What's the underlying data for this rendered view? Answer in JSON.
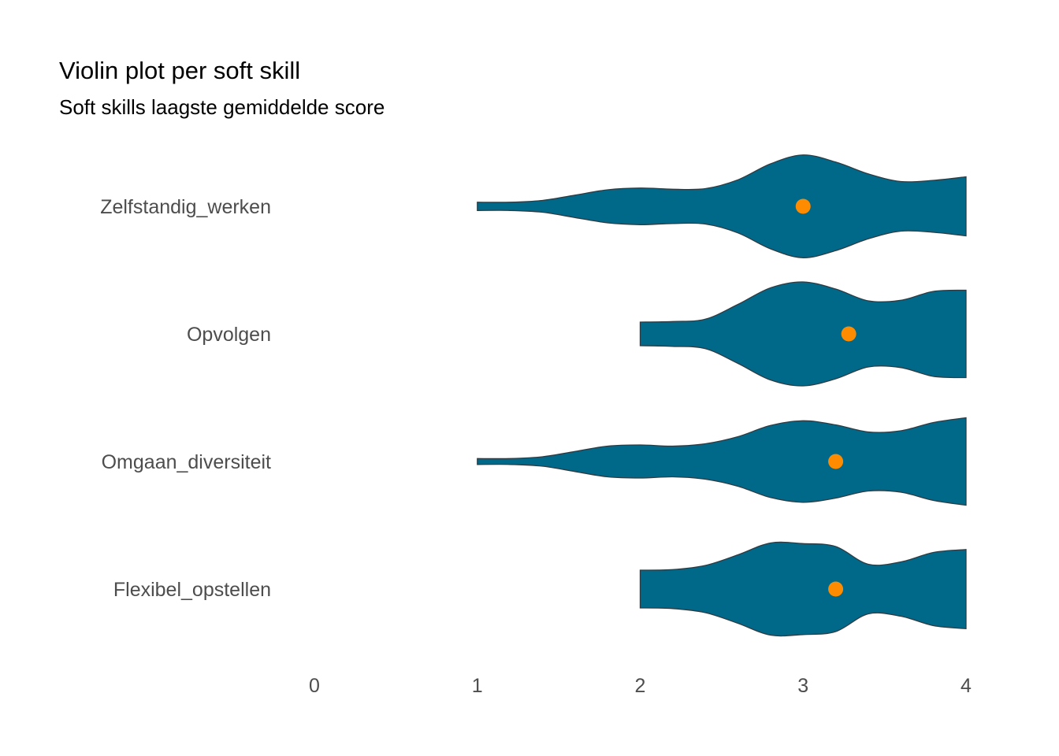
{
  "chart_data": {
    "type": "violin",
    "title": "Violin plot per soft skill",
    "subtitle": "Soft skills laagste gemiddelde score",
    "xlabel": "",
    "ylabel": "",
    "xlim": [
      0,
      4
    ],
    "xticks": [
      "0",
      "1",
      "2",
      "3",
      "4"
    ],
    "grid": false,
    "colors": {
      "violin_fill": "#006889",
      "violin_stroke": "#2e3b42",
      "mean_point": "#ff8c00"
    },
    "categories": [
      "Zelfstandig_werken",
      "Opvolgen",
      "Omgaan_diversiteit",
      "Flexibel_opstellen"
    ],
    "series": [
      {
        "category": "Zelfstandig_werken",
        "mean": 3.0,
        "range": [
          1,
          4
        ],
        "density": [
          [
            1.0,
            0.07
          ],
          [
            1.2,
            0.07
          ],
          [
            1.4,
            0.1
          ],
          [
            1.6,
            0.19
          ],
          [
            1.8,
            0.28
          ],
          [
            2.0,
            0.31
          ],
          [
            2.2,
            0.29
          ],
          [
            2.4,
            0.3
          ],
          [
            2.6,
            0.45
          ],
          [
            2.8,
            0.72
          ],
          [
            3.0,
            0.87
          ],
          [
            3.2,
            0.75
          ],
          [
            3.4,
            0.55
          ],
          [
            3.6,
            0.42
          ],
          [
            3.8,
            0.44
          ],
          [
            4.0,
            0.5
          ]
        ]
      },
      {
        "category": "Opvolgen",
        "mean": 3.28,
        "range": [
          2,
          4
        ],
        "density": [
          [
            2.0,
            0.2
          ],
          [
            2.2,
            0.21
          ],
          [
            2.4,
            0.25
          ],
          [
            2.6,
            0.5
          ],
          [
            2.8,
            0.78
          ],
          [
            3.0,
            0.88
          ],
          [
            3.2,
            0.76
          ],
          [
            3.4,
            0.56
          ],
          [
            3.6,
            0.57
          ],
          [
            3.8,
            0.72
          ],
          [
            4.0,
            0.74
          ]
        ]
      },
      {
        "category": "Omgaan_diversiteit",
        "mean": 3.2,
        "range": [
          1,
          4
        ],
        "density": [
          [
            1.0,
            0.05
          ],
          [
            1.2,
            0.05
          ],
          [
            1.4,
            0.08
          ],
          [
            1.6,
            0.17
          ],
          [
            1.8,
            0.26
          ],
          [
            2.0,
            0.28
          ],
          [
            2.2,
            0.26
          ],
          [
            2.4,
            0.3
          ],
          [
            2.6,
            0.42
          ],
          [
            2.8,
            0.61
          ],
          [
            3.0,
            0.69
          ],
          [
            3.2,
            0.62
          ],
          [
            3.4,
            0.5
          ],
          [
            3.6,
            0.52
          ],
          [
            3.8,
            0.66
          ],
          [
            4.0,
            0.74
          ]
        ]
      },
      {
        "category": "Flexibel_opstellen",
        "mean": 3.2,
        "range": [
          2,
          4
        ],
        "density": [
          [
            2.0,
            0.32
          ],
          [
            2.2,
            0.33
          ],
          [
            2.4,
            0.4
          ],
          [
            2.6,
            0.58
          ],
          [
            2.8,
            0.78
          ],
          [
            3.0,
            0.77
          ],
          [
            3.2,
            0.72
          ],
          [
            3.4,
            0.42
          ],
          [
            3.6,
            0.46
          ],
          [
            3.8,
            0.62
          ],
          [
            4.0,
            0.67
          ]
        ]
      }
    ]
  }
}
